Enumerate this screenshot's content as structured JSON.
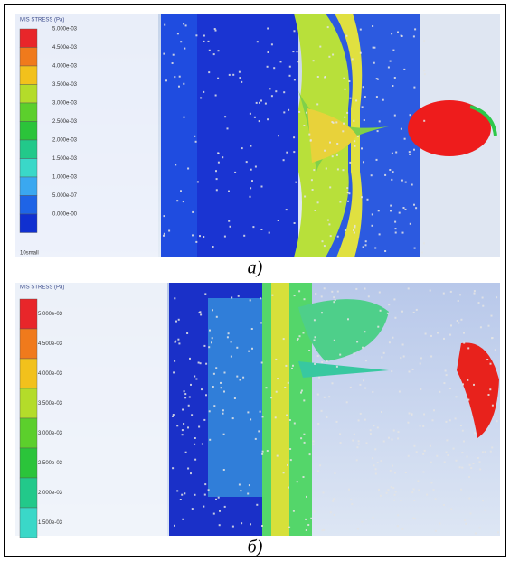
{
  "panels": [
    {
      "caption": "а)",
      "legend": {
        "title": "MIS STRESS (Pa)",
        "labels": [
          "5.000e-03",
          "4.500e-03",
          "4.000e-03",
          "3.500e-03",
          "3.000e-03",
          "2.500e-03",
          "2.000e-03",
          "1.500e-03",
          "1.000e-03",
          "5.000e-07",
          "0.000e-00"
        ],
        "footer": "10small"
      }
    },
    {
      "caption": "б)",
      "legend": {
        "title": "MIS STRESS (Pa)",
        "labels": [
          "5.000e-03",
          "4.500e-03",
          "4.000e-03",
          "3.500e-03",
          "3.000e-03",
          "2.500e-03",
          "2.000e-03",
          "1.500e-03"
        ]
      }
    }
  ]
}
